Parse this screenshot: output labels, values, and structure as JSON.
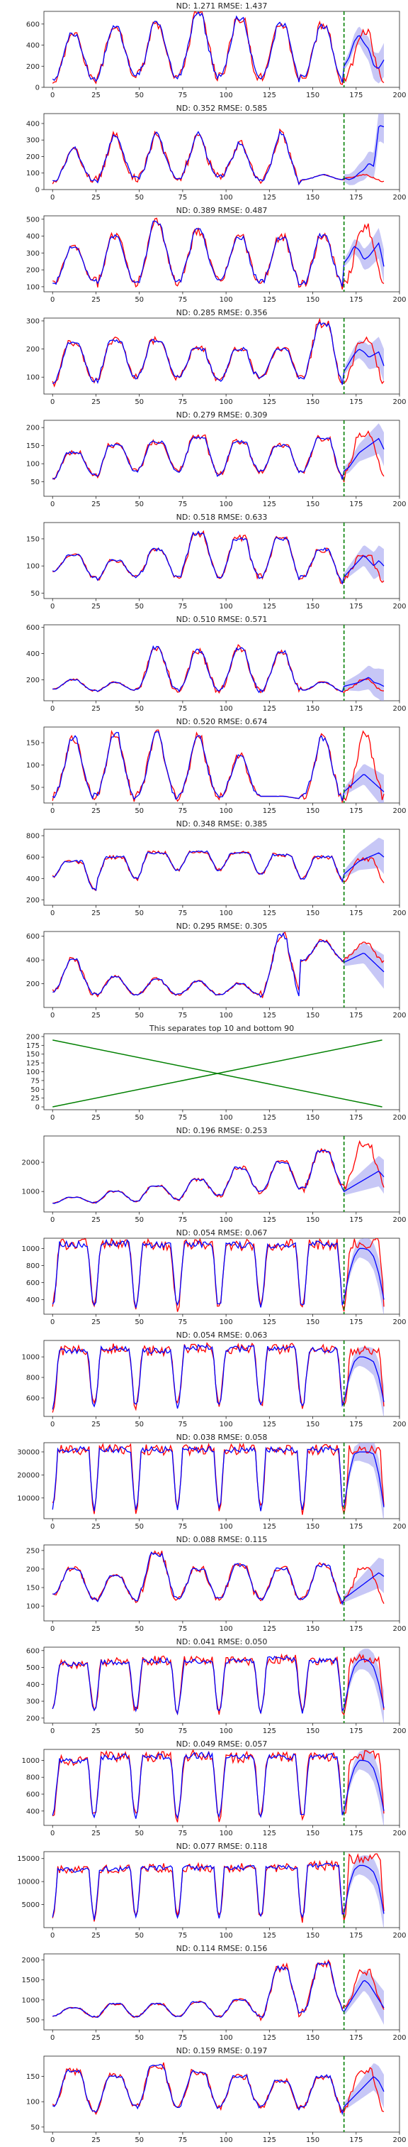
{
  "figure": {
    "x_ticks": [
      "0",
      "25",
      "50",
      "75",
      "100",
      "125",
      "150",
      "175",
      "200"
    ],
    "colors": {
      "forecast": "#0000ff",
      "actual": "#ff0000",
      "band": "#9999ee",
      "divider": "#008000",
      "separator": "#008000"
    }
  },
  "chart_data": [
    {
      "type": "line",
      "title": "ND:  1.271 RMSE:  1.437",
      "xlim": [
        -5,
        200
      ],
      "ylim": [
        0,
        720
      ],
      "yticks": [
        "0",
        "200",
        "400",
        "600"
      ],
      "tick_values": [
        0,
        200,
        400,
        600
      ],
      "level": [
        60,
        80,
        60,
        120,
        60,
        110,
        60,
        110,
        60,
        100,
        60,
        100,
        60,
        90,
        40
      ],
      "peaks": [
        500,
        560,
        600,
        690,
        660,
        600,
        580,
        520
      ],
      "flat": 0.2,
      "pred": [
        200,
        280,
        430,
        500,
        420,
        360,
        200,
        180,
        260
      ],
      "divider_x": 168
    },
    {
      "type": "line",
      "title": "ND:  0.352 RMSE:  0.585",
      "xlim": [
        -5,
        200
      ],
      "ylim": [
        0,
        460
      ],
      "yticks": [
        "0",
        "100",
        "200",
        "300",
        "400"
      ],
      "tick_values": [
        0,
        100,
        200,
        300,
        400
      ],
      "level": [
        50,
        60,
        50,
        70,
        50,
        70,
        50,
        80,
        60,
        60,
        40,
        60,
        60,
        70,
        50
      ],
      "peaks": [
        250,
        330,
        340,
        340,
        280,
        340,
        90,
        90
      ],
      "flat": 0.1,
      "pred": [
        70,
        60,
        70,
        100,
        120,
        160,
        140,
        390,
        380
      ],
      "divider_x": 168
    },
    {
      "type": "line",
      "title": "ND:  0.389 RMSE:  0.487",
      "xlim": [
        -5,
        200
      ],
      "ylim": [
        70,
        520
      ],
      "yticks": [
        "100",
        "200",
        "300",
        "400",
        "500"
      ],
      "tick_values": [
        100,
        200,
        300,
        400,
        500
      ],
      "level": [
        120,
        140,
        110,
        130,
        110,
        130,
        110,
        140,
        110,
        130,
        110,
        120,
        110,
        130,
        110
      ],
      "peaks": [
        330,
        400,
        480,
        430,
        390,
        390,
        400,
        450
      ],
      "flat": 0.2,
      "pred": [
        240,
        280,
        340,
        320,
        260,
        280,
        320,
        360,
        220
      ],
      "divider_x": 168
    },
    {
      "type": "line",
      "title": "ND:  0.285 RMSE:  0.356",
      "xlim": [
        -5,
        200
      ],
      "ylim": [
        40,
        310
      ],
      "yticks": [
        "100",
        "200",
        "300"
      ],
      "tick_values": [
        100,
        200,
        300
      ],
      "level": [
        80,
        90,
        80,
        100,
        90,
        100,
        80,
        90,
        80,
        100,
        90,
        100,
        80,
        90,
        80
      ],
      "peaks": [
        220,
        230,
        230,
        200,
        200,
        200,
        290,
        230
      ],
      "flat": 0.3,
      "pred": [
        120,
        150,
        180,
        200,
        190,
        170,
        180,
        190,
        140
      ],
      "divider_x": 168
    },
    {
      "type": "line",
      "title": "ND:  0.279 RMSE:  0.309",
      "xlim": [
        -5,
        200
      ],
      "ylim": [
        10,
        220
      ],
      "yticks": [
        "50",
        "100",
        "150",
        "200"
      ],
      "tick_values": [
        50,
        100,
        150,
        200
      ],
      "level": [
        60,
        70,
        60,
        80,
        70,
        80,
        60,
        70,
        60,
        80,
        70,
        80,
        60,
        70,
        60
      ],
      "peaks": [
        130,
        150,
        160,
        170,
        160,
        150,
        170,
        180
      ],
      "flat": 0.35,
      "pred": [
        80,
        90,
        110,
        130,
        140,
        150,
        160,
        170,
        140
      ],
      "divider_x": 168
    },
    {
      "type": "line",
      "title": "ND:  0.518 RMSE:  0.633",
      "xlim": [
        -5,
        200
      ],
      "ylim": [
        40,
        180
      ],
      "yticks": [
        "50",
        "100",
        "150"
      ],
      "tick_values": [
        50,
        100,
        150
      ],
      "level": [
        90,
        80,
        70,
        80,
        70,
        80,
        70,
        80,
        70,
        80,
        70,
        80,
        70,
        80,
        70
      ],
      "peaks": [
        120,
        110,
        130,
        160,
        150,
        150,
        130,
        120
      ],
      "flat": 0.3,
      "pred": [
        80,
        90,
        100,
        110,
        120,
        110,
        100,
        110,
        100
      ],
      "divider_x": 168
    },
    {
      "type": "line",
      "title": "ND:  0.510 RMSE:  0.571",
      "xlim": [
        -5,
        200
      ],
      "ylim": [
        40,
        620
      ],
      "yticks": [
        "200",
        "400",
        "600"
      ],
      "tick_values": [
        200,
        400,
        600
      ],
      "level": [
        130,
        120,
        110,
        120,
        110,
        120,
        110,
        120,
        110,
        120,
        110,
        120,
        110,
        120,
        110
      ],
      "peaks": [
        200,
        180,
        440,
        420,
        440,
        410,
        180,
        200
      ],
      "flat": 0.2,
      "pred": [
        150,
        160,
        170,
        180,
        200,
        220,
        180,
        170,
        150
      ],
      "divider_x": 168
    },
    {
      "type": "line",
      "title": "ND:  0.520 RMSE:  0.674",
      "xlim": [
        -5,
        200
      ],
      "ylim": [
        15,
        185
      ],
      "yticks": [
        "50",
        "100",
        "150"
      ],
      "tick_values": [
        50,
        100,
        150
      ],
      "level": [
        30,
        30,
        25,
        30,
        25,
        30,
        25,
        30,
        25,
        30,
        25,
        30,
        25,
        30,
        25
      ],
      "peaks": [
        160,
        170,
        170,
        160,
        120,
        30,
        160,
        170
      ],
      "flat": 0.15,
      "pred": [
        40,
        50,
        60,
        70,
        80,
        70,
        60,
        50,
        40
      ],
      "divider_x": 168
    },
    {
      "type": "line",
      "title": "ND:  0.348 RMSE:  0.385",
      "xlim": [
        -5,
        200
      ],
      "ylim": [
        150,
        860
      ],
      "yticks": [
        "200",
        "400",
        "600",
        "800"
      ],
      "tick_values": [
        200,
        400,
        600,
        800
      ],
      "level": [
        420,
        300,
        380,
        400,
        440,
        480,
        500,
        480,
        460,
        440,
        420,
        400,
        380,
        360,
        340
      ],
      "peaks": [
        560,
        600,
        640,
        650,
        640,
        620,
        600,
        580
      ],
      "flat": 0.45,
      "pred": [
        440,
        480,
        520,
        560,
        580,
        600,
        620,
        640,
        600
      ],
      "divider_x": 168
    },
    {
      "type": "line",
      "title": "ND:  0.295 RMSE:  0.305",
      "xlim": [
        -5,
        200
      ],
      "ylim": [
        0,
        640
      ],
      "yticks": [
        "200",
        "400",
        "600"
      ],
      "tick_values": [
        200,
        400,
        600
      ],
      "level": [
        140,
        120,
        100,
        110,
        100,
        110,
        100,
        110,
        100,
        110,
        100,
        400,
        400,
        420,
        380
      ],
      "peaks": [
        400,
        260,
        240,
        220,
        200,
        600,
        560,
        540
      ],
      "flat": 0.2,
      "pred": [
        380,
        400,
        420,
        440,
        460,
        420,
        380,
        340,
        300
      ],
      "divider_x": 168
    },
    {
      "type": "line",
      "title": "This separates top 10 and bottom 90",
      "xlim": [
        -5,
        200
      ],
      "ylim": [
        -8,
        208
      ],
      "yticks": [
        "0",
        "25",
        "50",
        "75",
        "100",
        "125",
        "150",
        "175",
        "200"
      ],
      "tick_values": [
        0,
        25,
        50,
        75,
        100,
        125,
        150,
        175,
        200
      ],
      "cross": [
        [
          0,
          190
        ],
        [
          190,
          0
        ],
        [
          0,
          0
        ],
        [
          190,
          190
        ]
      ],
      "divider_x": null
    },
    {
      "type": "line",
      "title": "ND:  0.196 RMSE:  0.253",
      "xlim": [
        -5,
        200
      ],
      "ylim": [
        300,
        2900
      ],
      "yticks": [
        "1000",
        "2000"
      ],
      "tick_values": [
        1000,
        2000
      ],
      "level": [
        600,
        620,
        640,
        660,
        700,
        740,
        800,
        860,
        920,
        980,
        1040,
        1100,
        1160,
        1200,
        1240
      ],
      "peaks": [
        800,
        1000,
        1200,
        1400,
        1800,
        2000,
        2400,
        2600
      ],
      "flat": 0.3,
      "pred": [
        1000,
        1100,
        1200,
        1300,
        1400,
        1500,
        1600,
        1700,
        1500
      ],
      "divider_x": 168
    },
    {
      "type": "line",
      "title": "ND:  0.054 RMSE:  0.067",
      "xlim": [
        -5,
        200
      ],
      "ylim": [
        230,
        1120
      ],
      "yticks": [
        "400",
        "600",
        "800",
        "1000"
      ],
      "tick_values": [
        400,
        600,
        800,
        1000
      ],
      "level": [
        350,
        320,
        300,
        320,
        300,
        320,
        300,
        320,
        300,
        320,
        300,
        320,
        300,
        320,
        300
      ],
      "peaks": [
        1050,
        1060,
        1040,
        1050,
        1040,
        1040,
        1050,
        1060
      ],
      "flat": 0.7,
      "pred": [
        400,
        700,
        900,
        1000,
        1000,
        980,
        900,
        700,
        400
      ],
      "divider_x": 168
    },
    {
      "type": "line",
      "title": "ND:  0.054 RMSE:  0.063",
      "xlim": [
        -5,
        200
      ],
      "ylim": [
        420,
        1160
      ],
      "yticks": [
        "600",
        "800",
        "1000"
      ],
      "tick_values": [
        600,
        800,
        1000
      ],
      "level": [
        500,
        520,
        500,
        520,
        500,
        520,
        500,
        520,
        500,
        520,
        500,
        520,
        500,
        520,
        500
      ],
      "peaks": [
        1060,
        1080,
        1060,
        1090,
        1080,
        1080,
        1070,
        1060
      ],
      "flat": 0.7,
      "pred": [
        560,
        800,
        950,
        1000,
        1000,
        980,
        950,
        800,
        560
      ],
      "divider_x": 168
    },
    {
      "type": "line",
      "title": "ND:  0.038 RMSE:  0.058",
      "xlim": [
        -5,
        200
      ],
      "ylim": [
        1000,
        34000
      ],
      "yticks": [
        "10000",
        "20000",
        "30000"
      ],
      "tick_values": [
        10000,
        20000,
        30000
      ],
      "level": [
        6000,
        5000,
        4000,
        5000,
        4000,
        5000,
        4000,
        5000,
        4000,
        5000,
        4000,
        5000,
        4000,
        5000,
        4000
      ],
      "peaks": [
        31000,
        31000,
        31000,
        31000,
        31000,
        31000,
        31000,
        31000
      ],
      "flat": 0.75,
      "pred": [
        6000,
        20000,
        29000,
        30000,
        30000,
        30000,
        29000,
        20000,
        6000
      ],
      "divider_x": 168
    },
    {
      "type": "line",
      "title": "ND:  0.088 RMSE:  0.115",
      "xlim": [
        -5,
        200
      ],
      "ylim": [
        60,
        265
      ],
      "yticks": [
        "100",
        "150",
        "200",
        "250"
      ],
      "tick_values": [
        100,
        150,
        200,
        250
      ],
      "level": [
        130,
        120,
        110,
        120,
        110,
        120,
        110,
        120,
        110,
        120,
        110,
        120,
        110,
        120,
        110
      ],
      "peaks": [
        200,
        180,
        240,
        200,
        210,
        200,
        210,
        200
      ],
      "flat": 0.3,
      "pred": [
        120,
        130,
        140,
        150,
        160,
        170,
        180,
        190,
        180
      ],
      "divider_x": 168
    },
    {
      "type": "line",
      "title": "ND:  0.041 RMSE:  0.050",
      "xlim": [
        -5,
        200
      ],
      "ylim": [
        170,
        620
      ],
      "yticks": [
        "200",
        "300",
        "400",
        "500",
        "600"
      ],
      "tick_values": [
        200,
        300,
        400,
        500,
        600
      ],
      "level": [
        250,
        240,
        230,
        240,
        230,
        240,
        230,
        240,
        230,
        240,
        230,
        240,
        230,
        240,
        230
      ],
      "peaks": [
        520,
        530,
        540,
        540,
        540,
        550,
        540,
        550
      ],
      "flat": 0.7,
      "pred": [
        260,
        400,
        500,
        540,
        550,
        540,
        500,
        400,
        260
      ],
      "divider_x": 168
    },
    {
      "type": "line",
      "title": "ND:  0.049 RMSE:  0.057",
      "xlim": [
        -5,
        200
      ],
      "ylim": [
        230,
        1130
      ],
      "yticks": [
        "400",
        "600",
        "800",
        "1000"
      ],
      "tick_values": [
        400,
        600,
        800,
        1000
      ],
      "level": [
        350,
        330,
        320,
        330,
        320,
        330,
        320,
        330,
        320,
        330,
        320,
        330,
        320,
        330,
        320
      ],
      "peaks": [
        1000,
        1040,
        1040,
        1060,
        1040,
        1040,
        1050,
        1060
      ],
      "flat": 0.7,
      "pred": [
        400,
        700,
        900,
        1000,
        1000,
        980,
        900,
        700,
        400
      ],
      "divider_x": 168
    },
    {
      "type": "line",
      "title": "ND:  0.077 RMSE:  0.118",
      "xlim": [
        -5,
        200
      ],
      "ylim": [
        0,
        16500
      ],
      "yticks": [
        "5000",
        "10000",
        "15000"
      ],
      "tick_values": [
        5000,
        10000,
        15000
      ],
      "level": [
        2500,
        2000,
        1800,
        2000,
        1800,
        2000,
        1800,
        2000,
        1800,
        2000,
        1800,
        2000,
        1800,
        2000,
        1800
      ],
      "peaks": [
        12500,
        12800,
        13000,
        13000,
        13000,
        13000,
        13500,
        15000
      ],
      "flat": 0.75,
      "pred": [
        3000,
        9000,
        12500,
        13500,
        13500,
        13000,
        12000,
        9000,
        3000
      ],
      "divider_x": 168
    },
    {
      "type": "line",
      "title": "ND:  0.114 RMSE:  0.156",
      "xlim": [
        -5,
        200
      ],
      "ylim": [
        250,
        2150
      ],
      "yticks": [
        "500",
        "1000",
        "1500",
        "2000"
      ],
      "tick_values": [
        500,
        1000,
        1500,
        2000
      ],
      "level": [
        600,
        580,
        560,
        580,
        560,
        580,
        560,
        580,
        560,
        600,
        620,
        700,
        800,
        780,
        760
      ],
      "peaks": [
        800,
        900,
        900,
        950,
        1000,
        1800,
        1900,
        1700
      ],
      "flat": 0.3,
      "pred": [
        700,
        900,
        1100,
        1300,
        1500,
        1400,
        1200,
        1000,
        800
      ],
      "divider_x": 168
    },
    {
      "type": "line",
      "title": "ND:  0.159 RMSE:  0.197",
      "xlim": [
        -5,
        200
      ],
      "ylim": [
        40,
        190
      ],
      "yticks": [
        "50",
        "100",
        "150"
      ],
      "tick_values": [
        50,
        100,
        150
      ],
      "level": [
        90,
        80,
        80,
        90,
        80,
        90,
        80,
        90,
        80,
        90,
        80,
        90,
        80,
        90,
        80
      ],
      "peaks": [
        160,
        150,
        170,
        160,
        150,
        140,
        150,
        160
      ],
      "flat": 0.35,
      "pred": [
        90,
        100,
        110,
        120,
        130,
        140,
        150,
        140,
        120
      ],
      "divider_x": 168
    }
  ]
}
